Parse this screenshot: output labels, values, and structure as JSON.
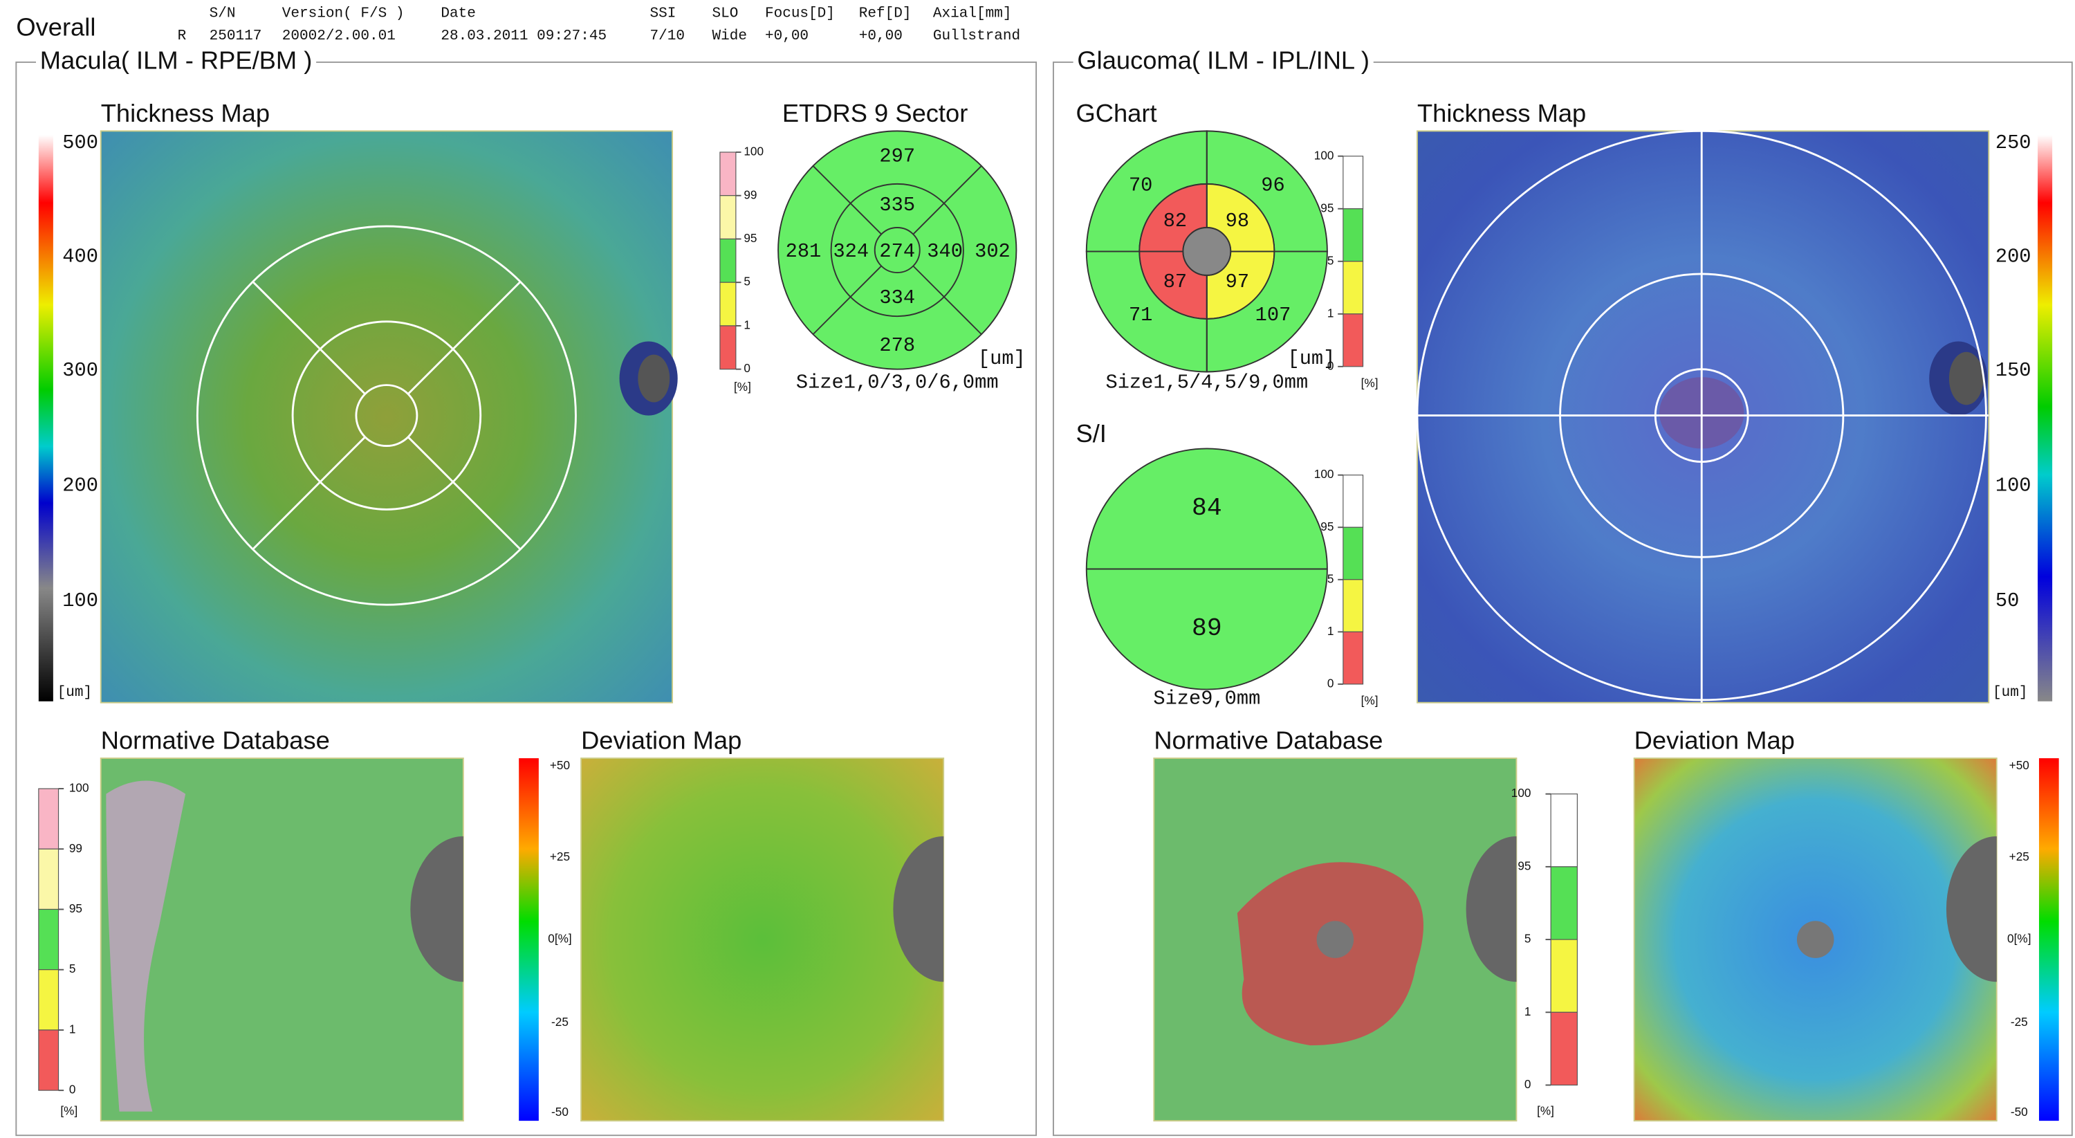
{
  "header": {
    "title": "Overall",
    "eye": "R",
    "columns": [
      {
        "label": "S/N",
        "value": "250117"
      },
      {
        "label": "Version( F/S )",
        "value": "20002/2.00.01"
      },
      {
        "label": "Date",
        "value": "28.03.2011 09:27:45"
      },
      {
        "label": "SSI",
        "value": "7/10"
      },
      {
        "label": "SLO",
        "value": "Wide"
      },
      {
        "label": "Focus[D]",
        "value": "+0,00"
      },
      {
        "label": "Ref[D]",
        "value": "+0,00"
      },
      {
        "label": "Axial[mm]",
        "value": "Gullstrand"
      }
    ]
  },
  "macula": {
    "title": "Macula( ILM - RPE/BM )",
    "thickness_map": {
      "title": "Thickness Map",
      "scale_ticks": [
        "500",
        "400",
        "300",
        "200",
        "100"
      ],
      "unit": "[um]"
    },
    "etdrs": {
      "title": "ETDRS 9 Sector",
      "values": [
        "297",
        "335",
        "281",
        "324",
        "274",
        "340",
        "302",
        "334",
        "278"
      ],
      "unit": "[um]",
      "size": "Size1,0/3,0/6,0mm",
      "legend_ticks": [
        "100",
        "99",
        "95",
        "5",
        "1",
        "0"
      ],
      "legend_unit": "[%]"
    },
    "normative_database": {
      "title": "Normative Database",
      "legend_ticks": [
        "100",
        "99",
        "95",
        "5",
        "1",
        "0"
      ],
      "legend_unit": "[%]"
    },
    "deviation_map": {
      "title": "Deviation Map",
      "scale_ticks": [
        "+50",
        "+25",
        "0[%]",
        "-25",
        "-50"
      ]
    }
  },
  "glaucoma": {
    "title": "Glaucoma( ILM - IPL/INL )",
    "gchart": {
      "title": "GChart",
      "sectors": [
        {
          "value": "70",
          "color": "#66ee66"
        },
        {
          "value": "96",
          "color": "#66ee66"
        },
        {
          "value": "82",
          "color": "#f25a5a"
        },
        {
          "value": "98",
          "color": "#f5f542"
        },
        {
          "value": "87",
          "color": "#f25a5a"
        },
        {
          "value": "97",
          "color": "#f5f542"
        },
        {
          "value": "71",
          "color": "#66ee66"
        },
        {
          "value": "107",
          "color": "#66ee66"
        }
      ],
      "unit": "[um]",
      "size": "Size1,5/4,5/9,0mm",
      "legend_ticks": [
        "100",
        "95",
        "5",
        "1",
        "0"
      ],
      "legend_unit": "[%]"
    },
    "si": {
      "title": "S/I",
      "values": [
        "84",
        "89"
      ],
      "size": "Size9,0mm",
      "legend_ticks": [
        "100",
        "95",
        "5",
        "1",
        "0"
      ],
      "legend_unit": "[%]"
    },
    "thickness_map": {
      "title": "Thickness Map",
      "scale_ticks": [
        "250",
        "200",
        "150",
        "100",
        "50"
      ],
      "unit": "[um]"
    },
    "normative_database": {
      "title": "Normative Database",
      "legend_ticks": [
        "100",
        "95",
        "5",
        "1",
        "0"
      ],
      "legend_unit": "[%]"
    },
    "deviation_map": {
      "title": "Deviation Map",
      "scale_ticks": [
        "+50",
        "+25",
        "0[%]",
        "-25",
        "-50"
      ]
    }
  }
}
